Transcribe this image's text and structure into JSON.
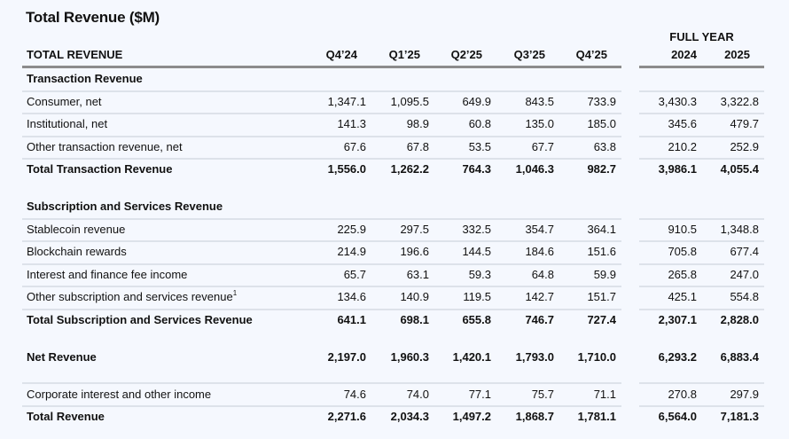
{
  "title": "Total Revenue ($M)",
  "header": {
    "label": "TOTAL REVENUE",
    "quarters": [
      "Q4’24",
      "Q1’25",
      "Q2’25",
      "Q3’25",
      "Q4’25"
    ],
    "full_year_label": "FULL YEAR",
    "years": [
      "2024",
      "2025"
    ]
  },
  "rows": [
    {
      "label": "Transaction Revenue",
      "style": "heading",
      "values": []
    },
    {
      "label": "Consumer, net",
      "style": "item",
      "values": [
        "1,347.1",
        "1,095.5",
        "649.9",
        "843.5",
        "733.9",
        "3,430.3",
        "3,322.8"
      ]
    },
    {
      "label": "Institutional, net",
      "style": "item",
      "values": [
        "141.3",
        "98.9",
        "60.8",
        "135.0",
        "185.0",
        "345.6",
        "479.7"
      ]
    },
    {
      "label": "Other transaction revenue, net",
      "style": "item",
      "values": [
        "67.6",
        "67.8",
        "53.5",
        "67.7",
        "63.8",
        "210.2",
        "252.9"
      ]
    },
    {
      "label": "Total Transaction Revenue",
      "style": "total",
      "values": [
        "1,556.0",
        "1,262.2",
        "764.3",
        "1,046.3",
        "982.7",
        "3,986.1",
        "4,055.4"
      ]
    },
    {
      "label": "Subscription and Services Revenue",
      "style": "heading",
      "values": []
    },
    {
      "label": "Stablecoin revenue",
      "style": "item",
      "values": [
        "225.9",
        "297.5",
        "332.5",
        "354.7",
        "364.1",
        "910.5",
        "1,348.8"
      ]
    },
    {
      "label": "Blockchain rewards",
      "style": "item",
      "values": [
        "214.9",
        "196.6",
        "144.5",
        "184.6",
        "151.6",
        "705.8",
        "677.4"
      ]
    },
    {
      "label": "Interest and finance fee income",
      "style": "item",
      "values": [
        "65.7",
        "63.1",
        "59.3",
        "64.8",
        "59.9",
        "265.8",
        "247.0"
      ]
    },
    {
      "label": "Other subscription and services revenue",
      "footnote": "1",
      "style": "item",
      "values": [
        "134.6",
        "140.9",
        "119.5",
        "142.7",
        "151.7",
        "425.1",
        "554.8"
      ]
    },
    {
      "label": "Total Subscription and Services Revenue",
      "style": "total",
      "values": [
        "641.1",
        "698.1",
        "655.8",
        "746.7",
        "727.4",
        "2,307.1",
        "2,828.0"
      ]
    },
    {
      "label": "Net Revenue",
      "style": "total",
      "values": [
        "2,197.0",
        "1,960.3",
        "1,420.1",
        "1,793.0",
        "1,710.0",
        "6,293.2",
        "6,883.4"
      ]
    },
    {
      "label": "Corporate interest and other income",
      "style": "item",
      "values": [
        "74.6",
        "74.0",
        "77.1",
        "75.7",
        "71.1",
        "270.8",
        "297.9"
      ]
    },
    {
      "label": "Total Revenue",
      "style": "total",
      "values": [
        "2,271.6",
        "2,034.3",
        "1,497.2",
        "1,868.7",
        "1,781.1",
        "6,564.0",
        "7,181.3"
      ]
    }
  ]
}
